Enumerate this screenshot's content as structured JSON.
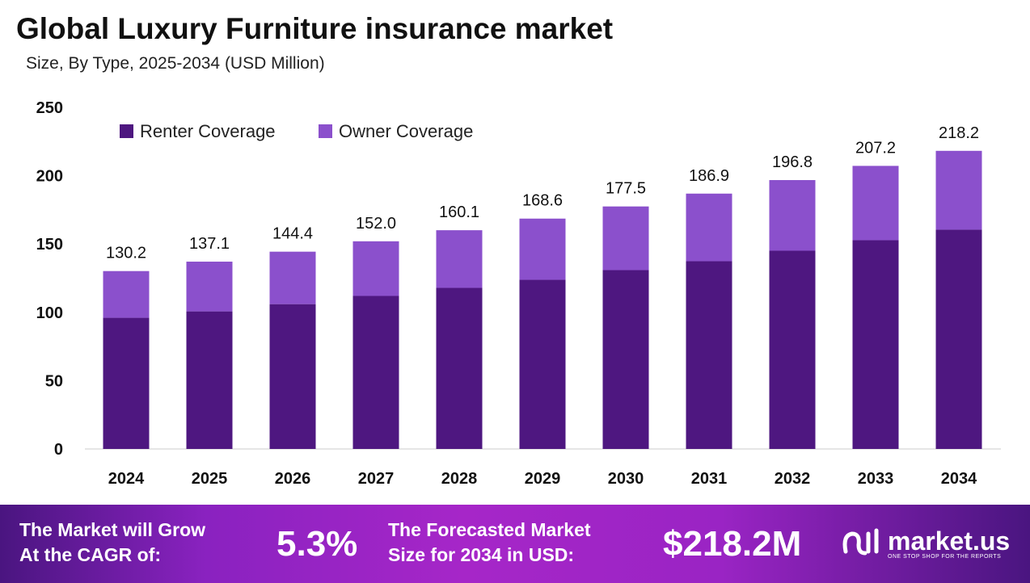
{
  "chart_data": {
    "type": "bar",
    "stacked": true,
    "title": "Global Luxury Furniture insurance market",
    "subtitle": "Size, By Type, 2025-2034 (USD Million)",
    "categories": [
      "2024",
      "2025",
      "2026",
      "2027",
      "2028",
      "2029",
      "2030",
      "2031",
      "2032",
      "2033",
      "2034"
    ],
    "series": [
      {
        "name": "Renter Coverage",
        "color": "#4E1780",
        "values": [
          96.0,
          100.7,
          106.0,
          112.0,
          117.9,
          123.8,
          130.9,
          137.4,
          145.1,
          152.8,
          160.5
        ]
      },
      {
        "name": "Owner Coverage",
        "color": "#8B50CC",
        "values": [
          34.2,
          36.4,
          38.4,
          40.0,
          42.2,
          44.8,
          46.6,
          49.5,
          51.7,
          54.4,
          57.7
        ]
      }
    ],
    "totals": [
      "130.2",
      "137.1",
      "144.4",
      "152.0",
      "160.1",
      "168.6",
      "177.5",
      "186.9",
      "196.8",
      "207.2",
      "218.2"
    ],
    "yticks": [
      "0",
      "50",
      "100",
      "150",
      "200",
      "250"
    ],
    "ylim": [
      0,
      250
    ],
    "grid": false,
    "legend": "top-left"
  },
  "banner": {
    "cagr_label_1": "The Market will Grow",
    "cagr_label_2": "At the CAGR of:",
    "cagr_value": "5.3%",
    "forecast_label_1": "The Forecasted Market",
    "forecast_label_2": "Size for 2034 in USD:",
    "forecast_value": "$218.2M",
    "logo_name": "market.us",
    "logo_tagline": "ONE STOP SHOP FOR THE REPORTS"
  }
}
